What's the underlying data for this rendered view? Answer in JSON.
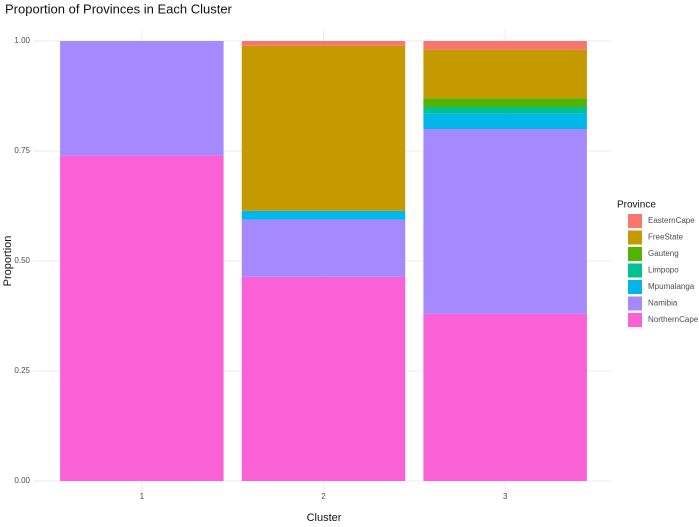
{
  "chart_data": {
    "type": "stacked_bar",
    "title": "Proportion of Provinces in Each Cluster",
    "x_label": "Cluster",
    "y_label": "Proportion",
    "legend_title": "Province",
    "categories": [
      "1",
      "2",
      "3"
    ],
    "series": [
      {
        "name": "EasternCape",
        "color": "#F8766D",
        "values": [
          0,
          0.011,
          0.02
        ]
      },
      {
        "name": "FreeState",
        "color": "#C49A00",
        "values": [
          0,
          0.375,
          0.11
        ]
      },
      {
        "name": "Gauteng",
        "color": "#53B400",
        "values": [
          0,
          0,
          0.02
        ]
      },
      {
        "name": "Limpopo",
        "color": "#00C094",
        "values": [
          0,
          0,
          0.015
        ]
      },
      {
        "name": "Mpumalanga",
        "color": "#00B6EB",
        "values": [
          0,
          0.02,
          0.035
        ]
      },
      {
        "name": "Namibia",
        "color": "#A58AFF",
        "values": [
          0.26,
          0.13,
          0.42
        ]
      },
      {
        "name": "NorthernCape",
        "color": "#FB61D7",
        "values": [
          0.74,
          0.464,
          0.38
        ]
      }
    ],
    "ylim": [
      0,
      1
    ],
    "yticks": [
      {
        "value": 0,
        "label": "0.00"
      },
      {
        "value": 0.25,
        "label": "0.25"
      },
      {
        "value": 0.5,
        "label": "0.50"
      },
      {
        "value": 0.75,
        "label": "0.75"
      },
      {
        "value": 1,
        "label": "1.00"
      }
    ],
    "grid": true,
    "legend": "right"
  }
}
